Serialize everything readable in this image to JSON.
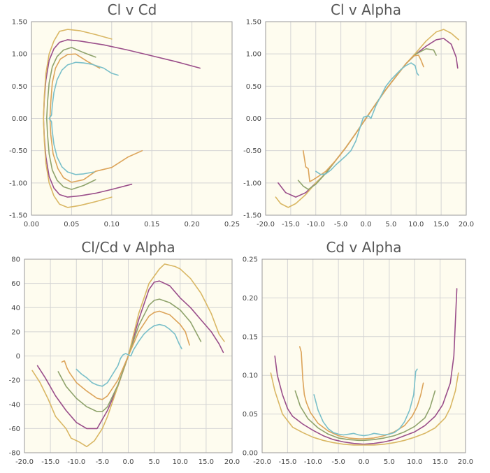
{
  "colors": {
    "plot_bg": "#fefcef",
    "grid": "#d4d4d4",
    "axis": "#999999",
    "purple": "#9a4e8a",
    "gold": "#d9b764",
    "olive": "#8fa36c",
    "orange": "#dca45a",
    "teal": "#79bfc9"
  },
  "chart_data": [
    {
      "id": "cl_v_cd",
      "type": "line",
      "title": "Cl v Cd",
      "xlabel": "",
      "ylabel": "",
      "xlim": [
        0,
        0.25
      ],
      "ylim": [
        -1.5,
        1.5
      ],
      "x_ticks": [
        "0.00",
        "0.05",
        "0.10",
        "0.15",
        "0.20",
        "0.25"
      ],
      "y_ticks": [
        "1.50",
        "1.00",
        "0.50",
        "0.00",
        "-0.50",
        "-1.00",
        "-1.50"
      ],
      "grid": true,
      "series": [
        {
          "name": "purple",
          "color": "#9a4e8a",
          "x": [
            0.21,
            0.18,
            0.15,
            0.12,
            0.09,
            0.06,
            0.045,
            0.035,
            0.028,
            0.022,
            0.018,
            0.016,
            0.015,
            0.016,
            0.018,
            0.022,
            0.028,
            0.035,
            0.045,
            0.06,
            0.08,
            0.1,
            0.125
          ],
          "y": [
            0.78,
            0.88,
            0.97,
            1.06,
            1.14,
            1.2,
            1.22,
            1.18,
            1.08,
            0.9,
            0.6,
            0.3,
            0.0,
            -0.3,
            -0.6,
            -0.9,
            -1.08,
            -1.18,
            -1.22,
            -1.2,
            -1.16,
            -1.1,
            -1.02
          ]
        },
        {
          "name": "gold",
          "color": "#d9b764",
          "x": [
            0.1,
            0.08,
            0.06,
            0.045,
            0.035,
            0.028,
            0.022,
            0.018,
            0.016,
            0.015,
            0.016,
            0.018,
            0.022,
            0.028,
            0.035,
            0.045,
            0.06,
            0.08,
            0.1
          ],
          "y": [
            1.23,
            1.3,
            1.36,
            1.38,
            1.35,
            1.2,
            1.0,
            0.7,
            0.35,
            0.0,
            -0.35,
            -0.7,
            -1.0,
            -1.2,
            -1.33,
            -1.38,
            -1.35,
            -1.29,
            -1.22
          ]
        },
        {
          "name": "olive",
          "color": "#8fa36c",
          "x": [
            0.08,
            0.065,
            0.05,
            0.04,
            0.032,
            0.026,
            0.022,
            0.02,
            0.019,
            0.02,
            0.022,
            0.026,
            0.032,
            0.04,
            0.05,
            0.065,
            0.08
          ],
          "y": [
            0.95,
            1.02,
            1.1,
            1.06,
            0.96,
            0.8,
            0.55,
            0.25,
            0.0,
            -0.25,
            -0.55,
            -0.8,
            -0.96,
            -1.06,
            -1.1,
            -1.04,
            -0.95
          ]
        },
        {
          "name": "orange",
          "color": "#dca45a",
          "x": [
            0.085,
            0.07,
            0.055,
            0.045,
            0.036,
            0.03,
            0.026,
            0.024,
            0.023,
            0.024,
            0.027,
            0.033,
            0.04,
            0.05,
            0.065,
            0.08,
            0.1,
            0.12,
            0.138
          ],
          "y": [
            0.78,
            0.88,
            1.0,
            0.99,
            0.92,
            0.78,
            0.55,
            0.25,
            0.0,
            -0.25,
            -0.55,
            -0.78,
            -0.92,
            -0.99,
            -0.95,
            -0.82,
            -0.76,
            -0.6,
            -0.5
          ]
        },
        {
          "name": "teal",
          "color": "#79bfc9",
          "x": [
            0.108,
            0.1,
            0.09,
            0.075,
            0.065,
            0.055,
            0.045,
            0.038,
            0.032,
            0.028,
            0.026,
            0.025,
            0.022,
            0.025,
            0.026,
            0.028,
            0.032,
            0.038,
            0.045,
            0.055,
            0.065,
            0.078
          ],
          "y": [
            0.67,
            0.7,
            0.78,
            0.84,
            0.86,
            0.87,
            0.83,
            0.75,
            0.6,
            0.4,
            0.2,
            0.05,
            0.0,
            -0.05,
            -0.2,
            -0.4,
            -0.6,
            -0.75,
            -0.83,
            -0.87,
            -0.86,
            -0.83
          ]
        }
      ]
    },
    {
      "id": "cl_v_alpha",
      "type": "line",
      "title": "Cl v Alpha",
      "xlabel": "",
      "ylabel": "",
      "xlim": [
        -20,
        20
      ],
      "ylim": [
        -1.5,
        1.5
      ],
      "x_ticks": [
        "-20.0",
        "-15.0",
        "-10.0",
        "-5.0",
        "0.0",
        "5.0",
        "10.0",
        "15.0",
        "20.0"
      ],
      "y_ticks": [
        "1.50",
        "1.00",
        "0.50",
        "0.00",
        "-0.50",
        "-1.00",
        "-1.50"
      ],
      "grid": true,
      "series": [
        {
          "name": "purple",
          "color": "#9a4e8a",
          "x": [
            -17.5,
            -16,
            -14,
            -12,
            -10,
            -8,
            -6,
            -4,
            -2,
            0,
            2,
            4,
            6,
            8,
            10,
            12,
            14,
            15.5,
            17,
            18,
            18.3
          ],
          "y": [
            -1.0,
            -1.15,
            -1.22,
            -1.15,
            -1.0,
            -0.85,
            -0.65,
            -0.45,
            -0.23,
            0.0,
            0.23,
            0.45,
            0.65,
            0.85,
            1.0,
            1.12,
            1.22,
            1.24,
            1.15,
            0.95,
            0.78
          ]
        },
        {
          "name": "gold",
          "color": "#d9b764",
          "x": [
            -18,
            -17,
            -15.5,
            -14,
            -12,
            -10,
            -8,
            -6,
            -4,
            -2,
            0,
            2,
            4,
            6,
            8,
            10,
            12,
            14,
            15.5,
            17,
            18.5
          ],
          "y": [
            -1.22,
            -1.32,
            -1.38,
            -1.32,
            -1.18,
            -1.0,
            -0.85,
            -0.65,
            -0.45,
            -0.23,
            0.0,
            0.23,
            0.45,
            0.65,
            0.85,
            1.02,
            1.2,
            1.34,
            1.38,
            1.32,
            1.22
          ]
        },
        {
          "name": "olive",
          "color": "#8fa36c",
          "x": [
            -13.5,
            -12.5,
            -11.5,
            -10,
            -8,
            -6,
            -4,
            -2,
            0,
            2,
            4,
            6,
            8,
            10,
            12,
            13.5,
            14
          ],
          "y": [
            -0.96,
            -1.05,
            -1.1,
            -1.02,
            -0.85,
            -0.65,
            -0.45,
            -0.23,
            0.0,
            0.23,
            0.45,
            0.65,
            0.85,
            1.0,
            1.08,
            1.06,
            0.98
          ]
        },
        {
          "name": "orange",
          "color": "#dca45a",
          "x": [
            -12.5,
            -12,
            -11.5,
            -11.2,
            -10.5,
            -9.5,
            -8,
            -6,
            -4,
            -2,
            0,
            2,
            4,
            6,
            8,
            9.5,
            10.5,
            11,
            11.5
          ],
          "y": [
            -0.5,
            -0.75,
            -0.78,
            -0.98,
            -0.95,
            -0.9,
            -0.82,
            -0.65,
            -0.45,
            -0.23,
            0.0,
            0.23,
            0.45,
            0.65,
            0.85,
            0.97,
            0.98,
            0.9,
            0.8
          ]
        },
        {
          "name": "teal",
          "color": "#79bfc9",
          "x": [
            -10,
            -9,
            -8,
            -7,
            -6,
            -5,
            -4,
            -3,
            -2,
            -1,
            -0.5,
            0.5,
            1,
            2,
            3,
            4,
            5,
            6,
            7,
            8,
            9,
            9.8,
            10.2,
            10.5
          ],
          "y": [
            -0.82,
            -0.87,
            -0.86,
            -0.8,
            -0.72,
            -0.65,
            -0.58,
            -0.5,
            -0.35,
            -0.1,
            0.02,
            0.04,
            0.0,
            0.2,
            0.35,
            0.5,
            0.6,
            0.68,
            0.76,
            0.82,
            0.86,
            0.82,
            0.7,
            0.67
          ]
        }
      ]
    },
    {
      "id": "clcd_v_alpha",
      "type": "line",
      "title": "Cl/Cd v Alpha",
      "xlabel": "",
      "ylabel": "",
      "xlim": [
        -20,
        20
      ],
      "ylim": [
        -80,
        80
      ],
      "x_ticks": [
        "-20.0",
        "-15.0",
        "-10.0",
        "-5.0",
        "0.0",
        "5.0",
        "10.0",
        "15.0",
        "20.0"
      ],
      "y_ticks": [
        "80",
        "60",
        "40",
        "20",
        "0",
        "-20",
        "-40",
        "-60",
        "-80"
      ],
      "grid": true,
      "series": [
        {
          "name": "purple",
          "color": "#9a4e8a",
          "x": [
            -17.5,
            -16,
            -14,
            -12,
            -10,
            -8,
            -6,
            -4,
            -2,
            0,
            2,
            4,
            5,
            6,
            8,
            10,
            12,
            14,
            16,
            17.5,
            18.3
          ],
          "y": [
            -8,
            -18,
            -33,
            -45,
            -55,
            -60,
            -60,
            -45,
            -25,
            0,
            30,
            55,
            61,
            62,
            58,
            48,
            40,
            30,
            20,
            10,
            3
          ]
        },
        {
          "name": "gold",
          "color": "#d9b764",
          "x": [
            -18.5,
            -17,
            -15.5,
            -14,
            -12,
            -11,
            -9.5,
            -8,
            -6.5,
            -5,
            -4,
            -2,
            0,
            2,
            4,
            6,
            7,
            9,
            10,
            12,
            14,
            16,
            17.5,
            18.5
          ],
          "y": [
            -12,
            -22,
            -35,
            -50,
            -60,
            -68,
            -71,
            -75,
            -70,
            -60,
            -50,
            -25,
            0,
            35,
            60,
            72,
            76,
            74,
            72,
            64,
            52,
            35,
            18,
            12
          ]
        },
        {
          "name": "olive",
          "color": "#8fa36c",
          "x": [
            -13.5,
            -12,
            -10,
            -8,
            -6,
            -5,
            -4,
            -2,
            0,
            2,
            4,
            5,
            6,
            8,
            10,
            12,
            14
          ],
          "y": [
            -13,
            -25,
            -35,
            -42,
            -46,
            -46,
            -42,
            -24,
            0,
            25,
            42,
            46,
            47,
            44,
            38,
            28,
            12
          ]
        },
        {
          "name": "orange",
          "color": "#dca45a",
          "x": [
            -12.8,
            -12.3,
            -11.8,
            -11.3,
            -10,
            -8,
            -6,
            -5,
            -4,
            -2,
            0,
            2,
            4,
            5,
            6,
            8,
            10,
            11,
            11.8
          ],
          "y": [
            -5,
            -4,
            -10,
            -14,
            -22,
            -29,
            -35,
            -36,
            -33,
            -20,
            0,
            20,
            33,
            36,
            37,
            34,
            26,
            20,
            9
          ]
        },
        {
          "name": "teal",
          "color": "#79bfc9",
          "x": [
            -10,
            -9,
            -8,
            -7,
            -6,
            -5,
            -4,
            -3,
            -2,
            -1.5,
            -1,
            -0.5,
            0,
            0.5,
            1,
            2,
            3,
            4,
            5,
            6,
            7,
            8,
            9,
            9.8,
            10.3
          ],
          "y": [
            -11,
            -15,
            -18,
            -22,
            -24,
            -25,
            -22,
            -15,
            -8,
            -2,
            1,
            2,
            1,
            0,
            5,
            12,
            18,
            22,
            25,
            26,
            25,
            22,
            18,
            10,
            6
          ]
        }
      ]
    },
    {
      "id": "cd_v_alpha",
      "type": "line",
      "title": "Cd v Alpha",
      "xlabel": "",
      "ylabel": "",
      "xlim": [
        -20,
        20
      ],
      "ylim": [
        0,
        0.25
      ],
      "x_ticks": [
        "-20.0",
        "-15.0",
        "-10.0",
        "-5.0",
        "0.0",
        "5.0",
        "10.0",
        "15.0",
        "20.0"
      ],
      "y_ticks": [
        "0.25",
        "0.20",
        "0.15",
        "0.10",
        "0.05",
        "0.00"
      ],
      "grid": true,
      "series": [
        {
          "name": "purple",
          "color": "#9a4e8a",
          "x": [
            -17.5,
            -17,
            -16,
            -15,
            -14,
            -12,
            -10,
            -8,
            -6,
            -4,
            -2,
            0,
            2,
            4,
            6,
            8,
            10,
            12,
            14,
            15.5,
            17,
            17.7,
            18,
            18.3
          ],
          "y": [
            0.125,
            0.1,
            0.075,
            0.057,
            0.047,
            0.037,
            0.029,
            0.022,
            0.017,
            0.014,
            0.012,
            0.011,
            0.012,
            0.014,
            0.017,
            0.022,
            0.027,
            0.035,
            0.047,
            0.062,
            0.09,
            0.125,
            0.17,
            0.212
          ]
        },
        {
          "name": "gold",
          "color": "#d9b764",
          "x": [
            -18.3,
            -17.5,
            -16,
            -14,
            -12,
            -10,
            -8,
            -6,
            -4,
            -2,
            0,
            2,
            4,
            6,
            8,
            10,
            12,
            14,
            16,
            17,
            18,
            18.6
          ],
          "y": [
            0.103,
            0.08,
            0.05,
            0.033,
            0.026,
            0.02,
            0.016,
            0.013,
            0.011,
            0.01,
            0.01,
            0.01,
            0.011,
            0.013,
            0.016,
            0.02,
            0.025,
            0.032,
            0.045,
            0.058,
            0.08,
            0.103
          ]
        },
        {
          "name": "olive",
          "color": "#8fa36c",
          "x": [
            -13.5,
            -12.5,
            -11,
            -9,
            -7,
            -5,
            -3,
            -1,
            0,
            2,
            4,
            6,
            8,
            10,
            12,
            13,
            14
          ],
          "y": [
            0.08,
            0.06,
            0.044,
            0.032,
            0.024,
            0.019,
            0.017,
            0.016,
            0.016,
            0.017,
            0.019,
            0.022,
            0.027,
            0.034,
            0.045,
            0.058,
            0.08
          ]
        },
        {
          "name": "orange",
          "color": "#dca45a",
          "x": [
            -12.6,
            -12.3,
            -12,
            -11.7,
            -11.3,
            -10.5,
            -9,
            -7,
            -5,
            -3,
            -1,
            0,
            2,
            4,
            6,
            8,
            9.5,
            10.5,
            11.2,
            11.7
          ],
          "y": [
            0.137,
            0.13,
            0.095,
            0.075,
            0.065,
            0.052,
            0.038,
            0.028,
            0.022,
            0.019,
            0.018,
            0.018,
            0.019,
            0.022,
            0.027,
            0.035,
            0.047,
            0.06,
            0.075,
            0.09
          ]
        },
        {
          "name": "teal",
          "color": "#79bfc9",
          "x": [
            -9.8,
            -9,
            -8,
            -7,
            -6,
            -5,
            -4,
            -3,
            -2,
            -1,
            0,
            1,
            2,
            3,
            4,
            5,
            6,
            7,
            8,
            9,
            9.8,
            10.2,
            10.5
          ],
          "y": [
            0.075,
            0.055,
            0.04,
            0.031,
            0.026,
            0.024,
            0.023,
            0.024,
            0.025,
            0.023,
            0.022,
            0.023,
            0.025,
            0.024,
            0.023,
            0.024,
            0.026,
            0.031,
            0.04,
            0.055,
            0.075,
            0.105,
            0.108
          ]
        }
      ]
    }
  ]
}
